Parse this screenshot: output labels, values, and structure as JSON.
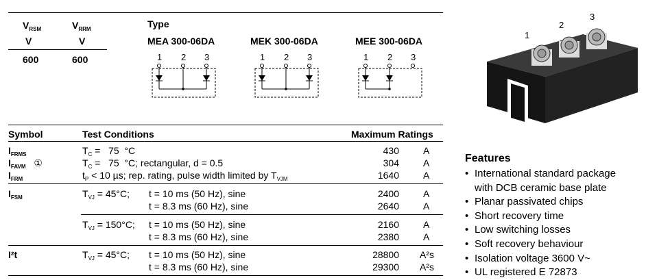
{
  "voltage": {
    "headers": [
      {
        "main": "V",
        "sub": "RSM"
      },
      {
        "main": "V",
        "sub": "RRM"
      }
    ],
    "units": [
      "V",
      "V"
    ],
    "values": [
      "600",
      "600"
    ]
  },
  "types": {
    "heading": "Type",
    "items": [
      {
        "name": "MEA 300-06DA",
        "pins": [
          "1",
          "2",
          "3"
        ]
      },
      {
        "name": "MEK 300-06DA",
        "pins": [
          "1",
          "2",
          "3"
        ]
      },
      {
        "name": "MEE 300-06DA",
        "pins": [
          "1",
          "2",
          "3"
        ]
      }
    ]
  },
  "module_pins": [
    "1",
    "2",
    "3"
  ],
  "table": {
    "headers": {
      "symbol": "Symbol",
      "conditions": "Test Conditions",
      "ratings": "Maximum Ratings"
    },
    "rows": [
      {
        "sym": "I",
        "sub": "FRMS",
        "cond_a": "T",
        "cond_a_sub": "C",
        "cond_b": "=   75  °C",
        "value": "430",
        "unit": "A"
      },
      {
        "sym": "I",
        "sub": "FAVM",
        "note": "①",
        "cond_a": "T",
        "cond_a_sub": "C",
        "cond_b": "=   75  °C; rectangular, d = 0.5",
        "value": "304",
        "unit": "A"
      },
      {
        "sym": "I",
        "sub": "FRM",
        "cond_a": "t",
        "cond_a_sub": "P",
        "cond_b": "< 10 µs; rep. rating, pulse width limited by T",
        "cond_b_sub": "VJM",
        "value": "1640",
        "unit": "A"
      },
      {
        "sym": "I",
        "sub": "FSM",
        "temp": "= 45°C;",
        "lines": [
          "t = 10 ms  (50 Hz), sine",
          "t = 8.3 ms (60 Hz), sine"
        ],
        "values": [
          "2400",
          "2640"
        ],
        "units": [
          "A",
          "A"
        ]
      },
      {
        "temp": "= 150°C;",
        "lines": [
          "t = 10 ms  (50 Hz), sine",
          "t = 8.3 ms (60 Hz), sine"
        ],
        "values": [
          "2160",
          "2380"
        ],
        "units": [
          "A",
          "A"
        ]
      },
      {
        "sym": "I²t",
        "temp": "= 45°C;",
        "lines": [
          "t = 10 ms  (50 Hz), sine",
          "t = 8.3 ms (60 Hz), sine"
        ],
        "values": [
          "28800",
          "29300"
        ],
        "units": [
          "A²s",
          "A²s"
        ]
      }
    ],
    "tvj": {
      "main": "T",
      "sub": "VJ"
    }
  },
  "features": {
    "heading": "Features",
    "items": [
      "International standard package",
      "with DCB ceramic base plate",
      "Planar passivated chips",
      "Short recovery time",
      "Low switching losses",
      "Soft recovery behaviour",
      "Isolation voltage 3600 V~",
      "UL registered E 72873"
    ]
  }
}
